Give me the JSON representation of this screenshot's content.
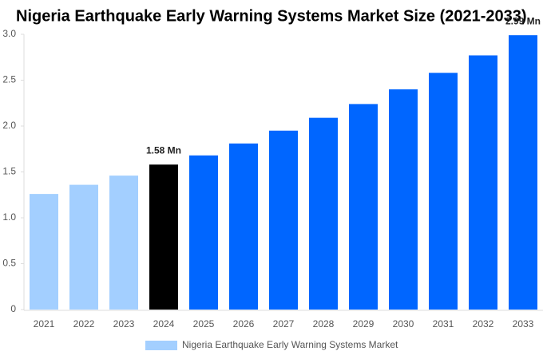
{
  "chart_data": {
    "type": "bar",
    "title": "Nigeria Earthquake Early Warning Systems Market Size (2021-2033)",
    "categories": [
      "2021",
      "2022",
      "2023",
      "2024",
      "2025",
      "2026",
      "2027",
      "2028",
      "2029",
      "2030",
      "2031",
      "2032",
      "2033"
    ],
    "series": [
      {
        "name": "Nigeria Earthquake Early Warning Systems Market",
        "color": "#a3cfff",
        "values": [
          1.26,
          1.36,
          1.46,
          1.58,
          1.68,
          1.81,
          1.95,
          2.09,
          2.24,
          2.4,
          2.58,
          2.77,
          2.99
        ],
        "value_labels": [
          null,
          null,
          null,
          "1.58 Mn",
          null,
          null,
          null,
          null,
          null,
          null,
          null,
          null,
          "2.99 Mn"
        ],
        "colors": [
          "#a3cfff",
          "#a3cfff",
          "#a3cfff",
          "#000000",
          "#0066ff",
          "#0066ff",
          "#0066ff",
          "#0066ff",
          "#0066ff",
          "#0066ff",
          "#0066ff",
          "#0066ff",
          "#0066ff"
        ]
      }
    ],
    "ylim": [
      0,
      3
    ],
    "yticks": [
      0,
      0.5,
      {
        "value": 1,
        "label": "1.0"
      },
      1.5,
      {
        "value": 2,
        "label": "2.0"
      },
      2.5,
      {
        "value": 3,
        "label": "3.0"
      }
    ],
    "grid": false
  }
}
